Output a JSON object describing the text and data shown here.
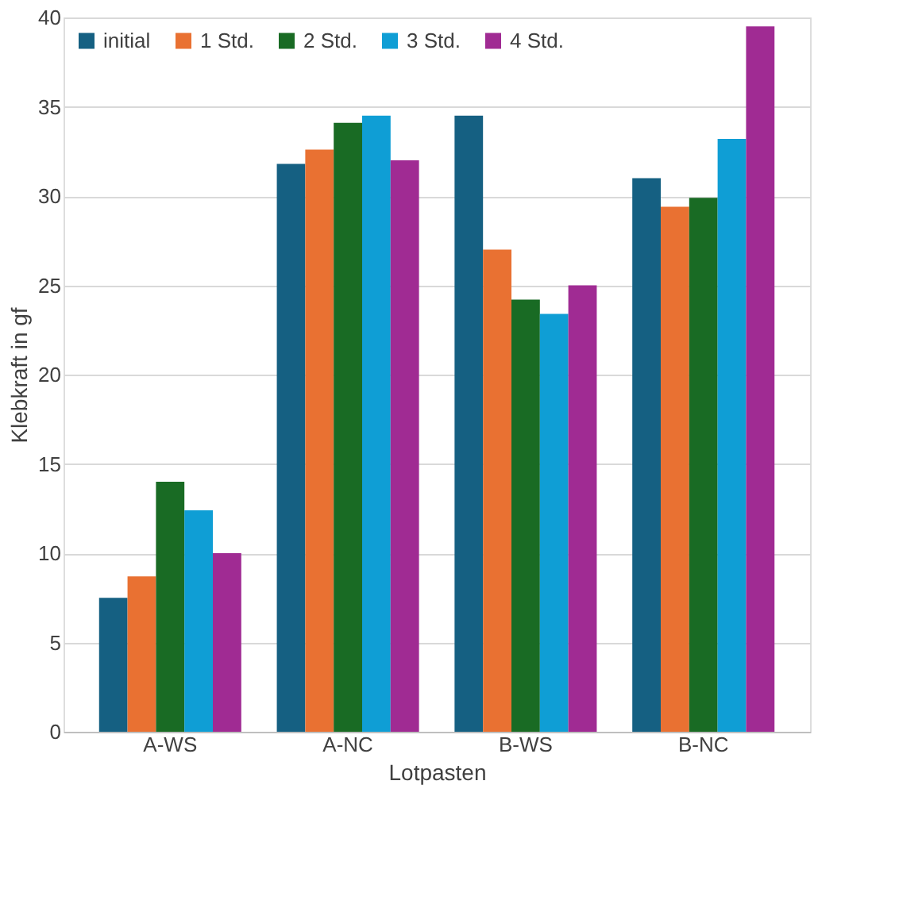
{
  "chart_data": {
    "type": "bar",
    "xlabel": "Lotpasten",
    "ylabel": "Klebkraft in gf",
    "categories": [
      "A-WS",
      "A-NC",
      "B-WS",
      "B-NC"
    ],
    "series": [
      {
        "name": "initial",
        "color": "#156082",
        "values": [
          7.5,
          31.8,
          34.5,
          31.0
        ]
      },
      {
        "name": "1 Std.",
        "color": "#e97132",
        "values": [
          8.7,
          32.6,
          27.0,
          29.4
        ]
      },
      {
        "name": "2 Std.",
        "color": "#196b24",
        "values": [
          14.0,
          34.1,
          24.2,
          29.9
        ]
      },
      {
        "name": "3 Std.",
        "color": "#0f9ed5",
        "values": [
          12.4,
          34.5,
          23.4,
          33.2
        ]
      },
      {
        "name": "4 Std.",
        "color": "#a02b93",
        "values": [
          10.0,
          32.0,
          25.0,
          39.5
        ]
      }
    ],
    "ylim": [
      0,
      40
    ],
    "yticks": [
      0,
      5,
      10,
      15,
      20,
      25,
      30,
      35,
      40
    ],
    "grid": "y",
    "legend": "top left"
  }
}
